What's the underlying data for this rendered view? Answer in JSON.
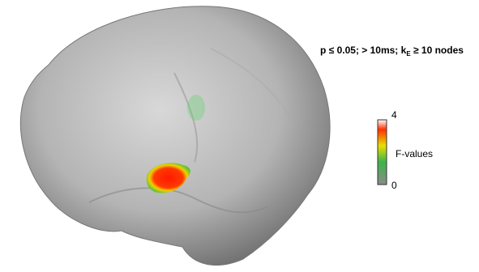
{
  "annotation": {
    "before": "p ≤ 0.05; > 10ms; k",
    "subscript": "E",
    "after": " ≥ 10 nodes"
  },
  "colorbar": {
    "label": "F-values",
    "max": 4,
    "min": 0
  }
}
